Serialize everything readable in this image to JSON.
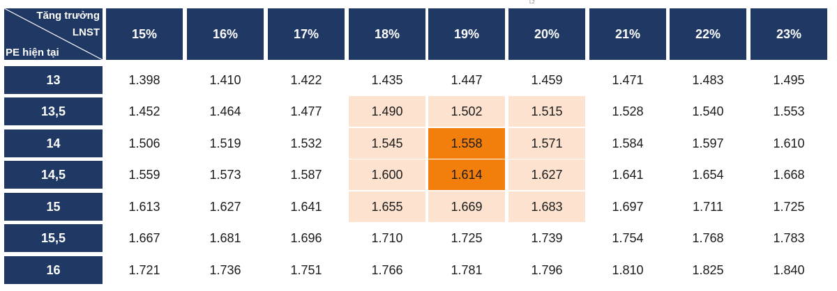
{
  "stray_mark": "L2",
  "corner": {
    "top_label": "Tăng trưởng",
    "middle_label": "LNST",
    "bottom_label": "PE hiện tại"
  },
  "columns": [
    "15%",
    "16%",
    "17%",
    "18%",
    "19%",
    "20%",
    "21%",
    "22%",
    "23%"
  ],
  "rows": [
    {
      "pe": "13",
      "values": [
        "1.398",
        "1.410",
        "1.422",
        "1.435",
        "1.447",
        "1.459",
        "1.471",
        "1.483",
        "1.495"
      ]
    },
    {
      "pe": "13,5",
      "values": [
        "1.452",
        "1.464",
        "1.477",
        "1.490",
        "1.502",
        "1.515",
        "1.528",
        "1.540",
        "1.553"
      ]
    },
    {
      "pe": "14",
      "values": [
        "1.506",
        "1.519",
        "1.532",
        "1.545",
        "1.558",
        "1.571",
        "1.584",
        "1.597",
        "1.610"
      ]
    },
    {
      "pe": "14,5",
      "values": [
        "1.559",
        "1.573",
        "1.587",
        "1.600",
        "1.614",
        "1.627",
        "1.641",
        "1.654",
        "1.668"
      ]
    },
    {
      "pe": "15",
      "values": [
        "1.613",
        "1.627",
        "1.641",
        "1.655",
        "1.669",
        "1.683",
        "1.697",
        "1.711",
        "1.725"
      ]
    },
    {
      "pe": "15,5",
      "values": [
        "1.667",
        "1.681",
        "1.696",
        "1.710",
        "1.725",
        "1.739",
        "1.754",
        "1.768",
        "1.783"
      ]
    },
    {
      "pe": "16",
      "values": [
        "1.721",
        "1.736",
        "1.751",
        "1.766",
        "1.781",
        "1.796",
        "1.810",
        "1.825",
        "1.840"
      ]
    }
  ],
  "colors": {
    "header": "#1f3864",
    "highlight_light": "#fde3cf",
    "highlight_strong": "#f27f0c"
  },
  "highlights": {
    "light": [
      [
        1,
        3
      ],
      [
        1,
        4
      ],
      [
        1,
        5
      ],
      [
        2,
        3
      ],
      [
        2,
        5
      ],
      [
        3,
        3
      ],
      [
        3,
        5
      ],
      [
        4,
        3
      ],
      [
        4,
        4
      ],
      [
        4,
        5
      ]
    ],
    "strong": [
      [
        2,
        4
      ],
      [
        3,
        4
      ]
    ]
  }
}
